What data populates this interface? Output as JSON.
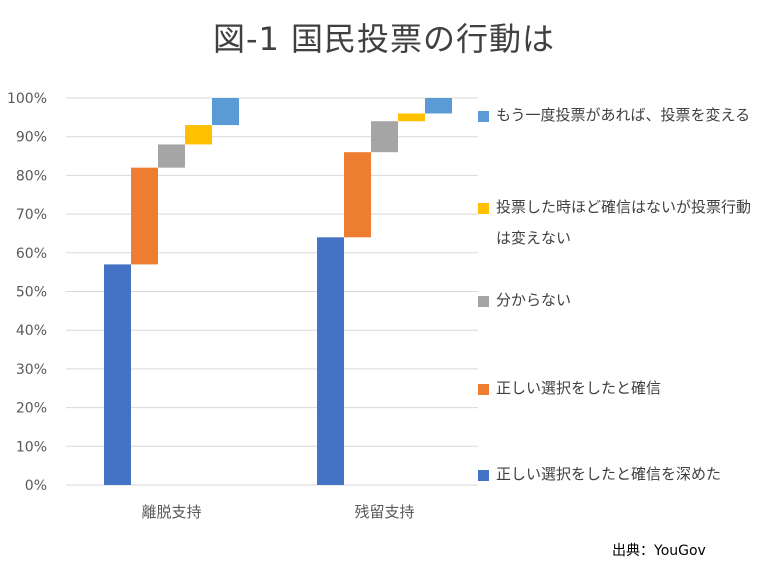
{
  "chart_data": {
    "type": "bar",
    "title": "図-1  国民投票の行動は",
    "categories": [
      "離脱支持",
      "残留支持"
    ],
    "series": [
      {
        "name": "正しい選択をしたと確信を深めた",
        "color": "#4472C4",
        "values": [
          57,
          64
        ]
      },
      {
        "name": "正しい選択をしたと確信",
        "color": "#ED7D31",
        "values": [
          25,
          22
        ]
      },
      {
        "name": "分からない",
        "color": "#A5A5A5",
        "values": [
          6,
          8
        ]
      },
      {
        "name": "投票した時ほど確信はないが投票行動は変えない",
        "color": "#FFC000",
        "values": [
          5,
          2
        ]
      },
      {
        "name": "もう一度投票があれば、投票を変える",
        "color": "#5B9BD5",
        "values": [
          7,
          4
        ]
      }
    ],
    "y_ticks": [
      "0%",
      "10%",
      "20%",
      "30%",
      "40%",
      "50%",
      "60%",
      "70%",
      "80%",
      "90%",
      "100%"
    ],
    "ylim": [
      0,
      100
    ],
    "grid": true,
    "legend_position": "right"
  },
  "source": "出典：YouGov"
}
